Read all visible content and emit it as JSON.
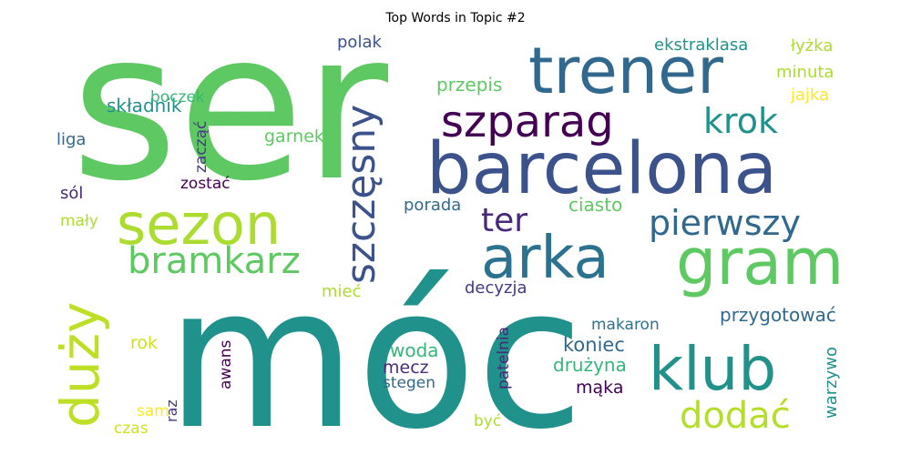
{
  "chart_data": {
    "type": "wordcloud",
    "title": "Top Words in Topic #2",
    "palette": "viridis",
    "words": [
      {
        "text": "ser",
        "weight": 100,
        "color": "#5ec962",
        "orientation": "horizontal"
      },
      {
        "text": "móc",
        "weight": 98,
        "color": "#21918c",
        "orientation": "horizontal"
      },
      {
        "text": "barcelona",
        "weight": 52,
        "color": "#3b528b",
        "orientation": "horizontal"
      },
      {
        "text": "trener",
        "weight": 45,
        "color": "#31688e",
        "orientation": "horizontal"
      },
      {
        "text": "arka",
        "weight": 43,
        "color": "#2c728e",
        "orientation": "horizontal"
      },
      {
        "text": "gram",
        "weight": 42,
        "color": "#5ec962",
        "orientation": "horizontal"
      },
      {
        "text": "klub",
        "weight": 40,
        "color": "#21918c",
        "orientation": "horizontal"
      },
      {
        "text": "sezon",
        "weight": 39,
        "color": "#addc30",
        "orientation": "horizontal"
      },
      {
        "text": "duży",
        "weight": 38,
        "color": "#bddf26",
        "orientation": "vertical"
      },
      {
        "text": "szparag",
        "weight": 34,
        "color": "#440154",
        "orientation": "horizontal"
      },
      {
        "text": "szczęsny",
        "weight": 30,
        "color": "#3b528b",
        "orientation": "vertical"
      },
      {
        "text": "bramkarz",
        "weight": 28,
        "color": "#5ec962",
        "orientation": "horizontal"
      },
      {
        "text": "pierwszy",
        "weight": 28,
        "color": "#31688e",
        "orientation": "horizontal"
      },
      {
        "text": "krok",
        "weight": 28,
        "color": "#21918c",
        "orientation": "horizontal"
      },
      {
        "text": "dodać",
        "weight": 28,
        "color": "#b5de2b",
        "orientation": "horizontal"
      },
      {
        "text": "ter",
        "weight": 26,
        "color": "#482878",
        "orientation": "horizontal"
      },
      {
        "text": "przygotować",
        "weight": 15,
        "color": "#31688e",
        "orientation": "horizontal"
      },
      {
        "text": "koniec",
        "weight": 15,
        "color": "#31688e",
        "orientation": "horizontal"
      },
      {
        "text": "woda",
        "weight": 15,
        "color": "#35b779",
        "orientation": "horizontal"
      },
      {
        "text": "mecz",
        "weight": 14,
        "color": "#472d7b",
        "orientation": "horizontal"
      },
      {
        "text": "drużyna",
        "weight": 14,
        "color": "#35b779",
        "orientation": "horizontal"
      },
      {
        "text": "warzywo",
        "weight": 14,
        "color": "#21918c",
        "orientation": "vertical"
      },
      {
        "text": "składnik",
        "weight": 14,
        "color": "#21918c",
        "orientation": "horizontal"
      },
      {
        "text": "przepis",
        "weight": 14,
        "color": "#5ec962",
        "orientation": "horizontal"
      },
      {
        "text": "ekstraklasa",
        "weight": 13,
        "color": "#21918c",
        "orientation": "horizontal"
      },
      {
        "text": "łyżka",
        "weight": 13,
        "color": "#addc30",
        "orientation": "horizontal"
      },
      {
        "text": "minuta",
        "weight": 13,
        "color": "#addc30",
        "orientation": "horizontal"
      },
      {
        "text": "jajka",
        "weight": 13,
        "color": "#fde725",
        "orientation": "horizontal"
      },
      {
        "text": "garnek",
        "weight": 13,
        "color": "#5ec962",
        "orientation": "horizontal"
      },
      {
        "text": "polak",
        "weight": 12,
        "color": "#3b528b",
        "orientation": "horizontal"
      },
      {
        "text": "boczek",
        "weight": 12,
        "color": "#35b779",
        "orientation": "horizontal"
      },
      {
        "text": "liga",
        "weight": 12,
        "color": "#31688e",
        "orientation": "horizontal"
      },
      {
        "text": "zacząć",
        "weight": 12,
        "color": "#443983",
        "orientation": "vertical"
      },
      {
        "text": "zostać",
        "weight": 12,
        "color": "#440154",
        "orientation": "horizontal"
      },
      {
        "text": "sól",
        "weight": 12,
        "color": "#482878",
        "orientation": "horizontal"
      },
      {
        "text": "mały",
        "weight": 12,
        "color": "#addc30",
        "orientation": "horizontal"
      },
      {
        "text": "porada",
        "weight": 12,
        "color": "#31688e",
        "orientation": "horizontal"
      },
      {
        "text": "ciasto",
        "weight": 13,
        "color": "#5ec962",
        "orientation": "horizontal"
      },
      {
        "text": "decyzja",
        "weight": 13,
        "color": "#443983",
        "orientation": "horizontal"
      },
      {
        "text": "mieć",
        "weight": 12,
        "color": "#addc30",
        "orientation": "horizontal"
      },
      {
        "text": "rok",
        "weight": 13,
        "color": "#d0e11c",
        "orientation": "horizontal"
      },
      {
        "text": "awans",
        "weight": 12,
        "color": "#440154",
        "orientation": "vertical"
      },
      {
        "text": "makaron",
        "weight": 13,
        "color": "#2c728e",
        "orientation": "horizontal"
      },
      {
        "text": "mąka",
        "weight": 13,
        "color": "#440154",
        "orientation": "horizontal"
      },
      {
        "text": "stegen",
        "weight": 13,
        "color": "#31688e",
        "orientation": "horizontal"
      },
      {
        "text": "patelnia",
        "weight": 12,
        "color": "#482878",
        "orientation": "vertical"
      },
      {
        "text": "sam",
        "weight": 12,
        "color": "#fde725",
        "orientation": "horizontal"
      },
      {
        "text": "raz",
        "weight": 12,
        "color": "#443983",
        "orientation": "vertical"
      },
      {
        "text": "czas",
        "weight": 12,
        "color": "#d0e11c",
        "orientation": "horizontal"
      },
      {
        "text": "być",
        "weight": 12,
        "color": "#addc30",
        "orientation": "horizontal"
      }
    ]
  }
}
